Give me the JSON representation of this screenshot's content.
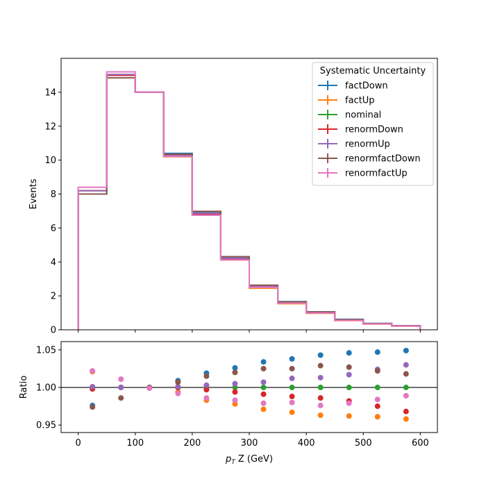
{
  "chart_data": {
    "type": "step-histogram-with-ratio",
    "bin_edges": [
      0,
      50,
      100,
      150,
      200,
      250,
      300,
      350,
      400,
      450,
      500,
      550,
      600
    ],
    "xlabel_prefix": "p",
    "xlabel_sub": "T",
    "xlabel_suffix": " Z (GeV)",
    "xlim": [
      -30,
      630
    ],
    "xticks": [
      0,
      100,
      200,
      300,
      400,
      500,
      600
    ],
    "top": {
      "ylabel": "Events",
      "ylim": [
        0,
        16.0
      ],
      "yticks": [
        0,
        2,
        4,
        6,
        8,
        10,
        12,
        14
      ]
    },
    "bottom": {
      "ylabel": "Ratio",
      "ylim": [
        0.94,
        1.061
      ],
      "yticks": [
        0.95,
        1.0,
        1.05
      ],
      "ytick_labels": [
        "0.95",
        "1.00",
        "1.05"
      ],
      "reference_line": 1.0,
      "ratio_x": [
        25,
        75,
        125,
        175,
        225,
        275,
        325,
        375,
        425,
        475,
        525,
        575
      ]
    },
    "legend": {
      "title": "Systematic Uncertainty",
      "position": "top-right"
    },
    "series": [
      {
        "name": "factDown",
        "color": "#1f77b4",
        "values": [
          8.0,
          15.0,
          14.0,
          10.4,
          6.95,
          4.3,
          2.62,
          1.66,
          1.06,
          0.62,
          0.38,
          0.24
        ],
        "ratio": [
          0.976,
          1.0,
          1.0,
          1.009,
          1.019,
          1.026,
          1.034,
          1.038,
          1.043,
          1.046,
          1.047,
          1.049
        ]
      },
      {
        "name": "factUp",
        "color": "#ff7f0e",
        "values": [
          8.2,
          15.0,
          14.0,
          10.2,
          6.75,
          4.12,
          2.45,
          1.54,
          0.97,
          0.54,
          0.34,
          0.22
        ],
        "ratio": [
          1.021,
          1.0,
          1.0,
          0.994,
          0.983,
          0.978,
          0.971,
          0.967,
          0.963,
          0.962,
          0.961,
          0.958
        ]
      },
      {
        "name": "nominal",
        "color": "#2ca02c",
        "values": [
          8.2,
          15.0,
          14.0,
          10.3,
          6.85,
          4.2,
          2.55,
          1.6,
          1.02,
          0.58,
          0.36,
          0.23
        ],
        "ratio": [
          1.0,
          1.0,
          1.0,
          1.0,
          1.0,
          1.0,
          1.0,
          1.0,
          1.0,
          1.0,
          1.0,
          1.0
        ]
      },
      {
        "name": "renormDown",
        "color": "#d62728",
        "values": [
          8.2,
          15.0,
          14.0,
          10.3,
          6.82,
          4.17,
          2.52,
          1.58,
          1.0,
          0.57,
          0.35,
          0.22
        ],
        "ratio": [
          0.998,
          1.0,
          1.0,
          1.0,
          0.997,
          0.994,
          0.991,
          0.988,
          0.986,
          0.982,
          0.975,
          0.968
        ]
      },
      {
        "name": "renormUp",
        "color": "#9467bd",
        "values": [
          8.2,
          15.05,
          14.0,
          10.3,
          6.87,
          4.22,
          2.57,
          1.62,
          1.03,
          0.59,
          0.37,
          0.24
        ],
        "ratio": [
          1.001,
          1.0,
          1.0,
          1.001,
          1.003,
          1.005,
          1.007,
          1.012,
          1.013,
          1.017,
          1.024,
          1.03
        ]
      },
      {
        "name": "renormfactDown",
        "color": "#8c564b",
        "values": [
          8.0,
          14.85,
          14.0,
          10.35,
          6.98,
          4.31,
          2.63,
          1.64,
          1.05,
          0.6,
          0.37,
          0.24
        ],
        "ratio": [
          0.974,
          0.986,
          1.0,
          1.007,
          1.015,
          1.02,
          1.025,
          1.025,
          1.029,
          1.027,
          1.022,
          1.018
        ]
      },
      {
        "name": "renormfactUp",
        "color": "#e377c2",
        "values": [
          8.4,
          15.2,
          14.0,
          10.22,
          6.75,
          4.12,
          2.5,
          1.57,
          0.99,
          0.56,
          0.35,
          0.22
        ],
        "ratio": [
          1.022,
          1.011,
          0.999,
          0.992,
          0.986,
          0.983,
          0.979,
          0.98,
          0.976,
          0.979,
          0.984,
          0.989
        ]
      }
    ]
  }
}
